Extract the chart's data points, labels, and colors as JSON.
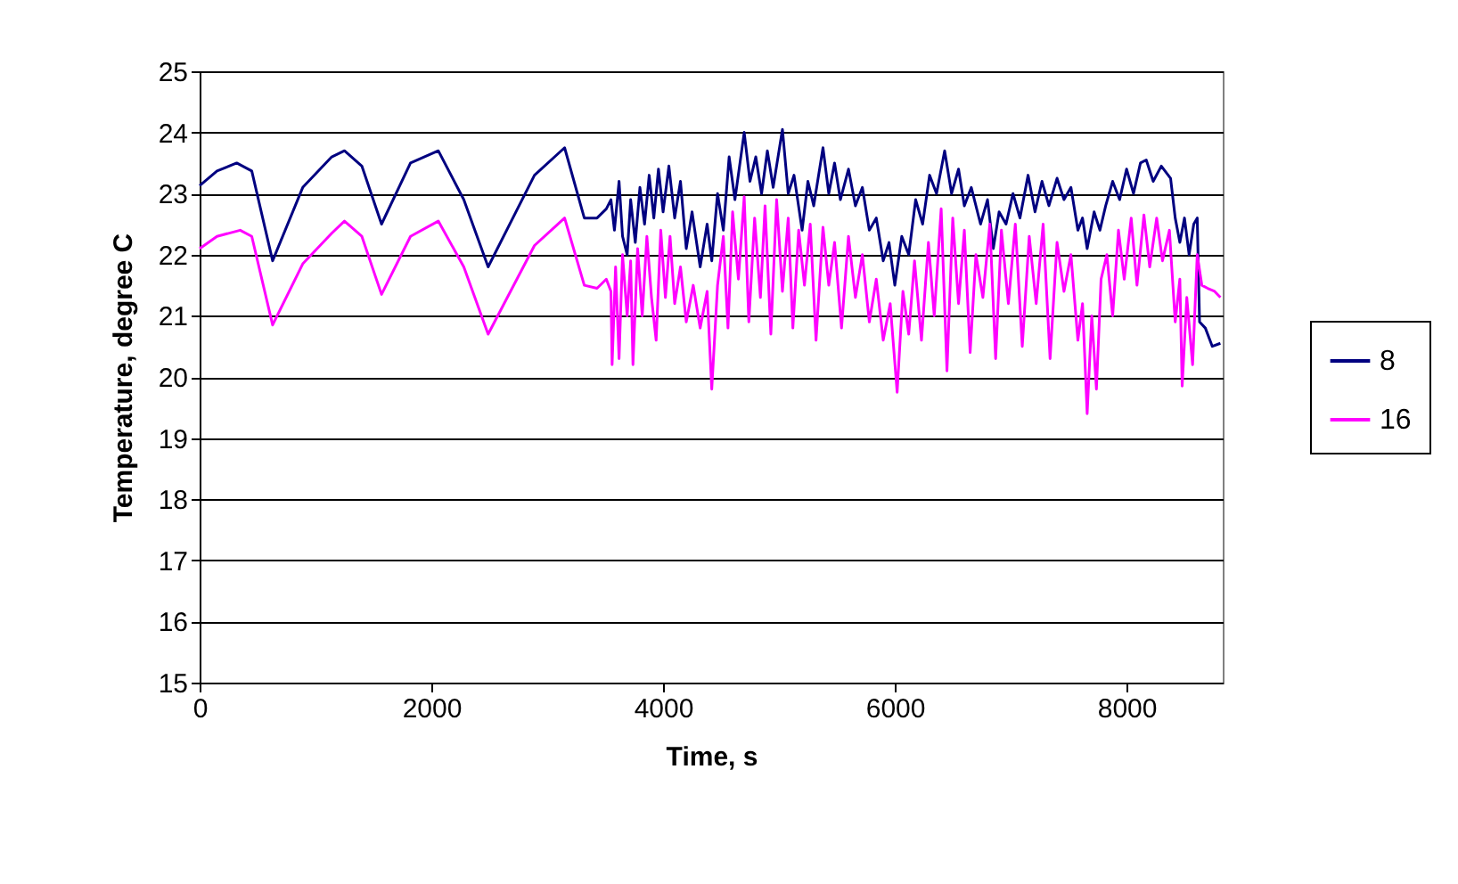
{
  "chart_data": {
    "type": "line",
    "xlabel": "Time, s",
    "ylabel": "Temperature, degree C",
    "xlim": [
      0,
      8830
    ],
    "xticks": [
      0,
      2000,
      4000,
      6000,
      8000
    ],
    "ylim": [
      15,
      25
    ],
    "yticks": [
      15,
      16,
      17,
      18,
      19,
      20,
      21,
      22,
      23,
      24,
      25
    ],
    "grid": "y",
    "legend": "right",
    "marker": "none",
    "line_style": "solid",
    "series": [
      {
        "name": "8",
        "color": "#000080",
        "x": [
          0,
          150,
          320,
          450,
          630,
          890,
          1140,
          1250,
          1400,
          1570,
          1820,
          2060,
          2280,
          2490,
          2890,
          3150,
          3320,
          3430,
          3510,
          3550,
          3580,
          3620,
          3650,
          3690,
          3720,
          3760,
          3800,
          3840,
          3880,
          3920,
          3960,
          4000,
          4050,
          4100,
          4150,
          4200,
          4250,
          4320,
          4380,
          4420,
          4470,
          4520,
          4570,
          4620,
          4700,
          4750,
          4800,
          4850,
          4900,
          4950,
          5030,
          5080,
          5130,
          5200,
          5250,
          5300,
          5380,
          5430,
          5480,
          5530,
          5600,
          5660,
          5720,
          5780,
          5840,
          5900,
          5950,
          6000,
          6060,
          6120,
          6180,
          6240,
          6300,
          6360,
          6430,
          6490,
          6550,
          6600,
          6660,
          6740,
          6800,
          6850,
          6900,
          6960,
          7020,
          7080,
          7150,
          7210,
          7270,
          7330,
          7400,
          7460,
          7520,
          7580,
          7620,
          7660,
          7720,
          7770,
          7820,
          7880,
          7940,
          8000,
          8060,
          8120,
          8170,
          8230,
          8300,
          8380,
          8420,
          8460,
          8500,
          8540,
          8580,
          8610,
          8630,
          8680,
          8740,
          8810
        ],
        "values": [
          23.13,
          23.37,
          23.5,
          23.37,
          21.9,
          23.1,
          23.6,
          23.7,
          23.45,
          22.5,
          23.5,
          23.7,
          22.9,
          21.8,
          23.3,
          23.75,
          22.6,
          22.6,
          22.75,
          22.9,
          22.4,
          23.2,
          22.3,
          22.0,
          22.9,
          22.2,
          23.1,
          22.5,
          23.3,
          22.6,
          23.4,
          22.7,
          23.45,
          22.6,
          23.2,
          22.1,
          22.7,
          21.8,
          22.5,
          21.9,
          23.0,
          22.4,
          23.6,
          22.9,
          24.0,
          23.2,
          23.6,
          23.0,
          23.7,
          23.1,
          24.05,
          23.0,
          23.3,
          22.4,
          23.2,
          22.8,
          23.75,
          23.0,
          23.5,
          22.9,
          23.4,
          22.8,
          23.1,
          22.4,
          22.6,
          21.9,
          22.2,
          21.5,
          22.3,
          22.0,
          22.9,
          22.5,
          23.3,
          23.0,
          23.7,
          23.0,
          23.4,
          22.8,
          23.1,
          22.5,
          22.9,
          22.1,
          22.7,
          22.5,
          23.0,
          22.6,
          23.3,
          22.7,
          23.2,
          22.8,
          23.25,
          22.9,
          23.1,
          22.4,
          22.6,
          22.1,
          22.7,
          22.4,
          22.8,
          23.2,
          22.9,
          23.4,
          23.0,
          23.5,
          23.55,
          23.2,
          23.45,
          23.25,
          22.6,
          22.2,
          22.6,
          22.0,
          22.5,
          22.6,
          20.9,
          20.8,
          20.5,
          20.55
        ]
      },
      {
        "name": "16",
        "color": "#ff00ff",
        "x": [
          0,
          150,
          350,
          450,
          630,
          890,
          1140,
          1250,
          1400,
          1570,
          1820,
          2060,
          2280,
          2490,
          2890,
          3150,
          3320,
          3430,
          3510,
          3550,
          3560,
          3590,
          3620,
          3650,
          3690,
          3720,
          3740,
          3780,
          3820,
          3860,
          3900,
          3940,
          3980,
          4020,
          4060,
          4100,
          4150,
          4200,
          4260,
          4320,
          4380,
          4420,
          4470,
          4520,
          4560,
          4600,
          4650,
          4700,
          4740,
          4790,
          4840,
          4880,
          4930,
          4980,
          5030,
          5080,
          5120,
          5170,
          5220,
          5270,
          5320,
          5380,
          5430,
          5480,
          5540,
          5600,
          5660,
          5720,
          5780,
          5840,
          5900,
          5960,
          6020,
          6070,
          6120,
          6170,
          6230,
          6290,
          6340,
          6400,
          6450,
          6500,
          6550,
          6600,
          6650,
          6700,
          6760,
          6820,
          6870,
          6920,
          6980,
          7040,
          7100,
          7160,
          7220,
          7280,
          7340,
          7400,
          7460,
          7520,
          7580,
          7620,
          7660,
          7700,
          7740,
          7780,
          7830,
          7880,
          7930,
          7980,
          8040,
          8090,
          8150,
          8200,
          8260,
          8310,
          8370,
          8420,
          8460,
          8480,
          8520,
          8570,
          8610,
          8650,
          8700,
          8760,
          8810
        ],
        "values": [
          22.1,
          22.3,
          22.4,
          22.3,
          20.85,
          21.85,
          22.35,
          22.55,
          22.3,
          21.35,
          22.3,
          22.55,
          21.8,
          20.7,
          22.15,
          22.6,
          21.5,
          21.45,
          21.6,
          21.4,
          20.2,
          21.8,
          20.3,
          22.0,
          21.0,
          21.9,
          20.2,
          22.1,
          21.0,
          22.3,
          21.3,
          20.6,
          22.4,
          21.3,
          22.3,
          21.2,
          21.8,
          20.9,
          21.5,
          20.8,
          21.4,
          19.8,
          21.5,
          22.3,
          20.8,
          22.7,
          21.6,
          22.95,
          20.9,
          22.6,
          21.3,
          22.8,
          20.7,
          22.9,
          21.4,
          22.6,
          20.8,
          22.4,
          21.5,
          22.5,
          20.6,
          22.45,
          21.5,
          22.2,
          20.8,
          22.3,
          21.3,
          22.0,
          20.9,
          21.6,
          20.6,
          21.2,
          19.75,
          21.4,
          20.7,
          21.9,
          20.6,
          22.2,
          21.0,
          22.75,
          20.1,
          22.6,
          21.2,
          22.4,
          20.4,
          22.0,
          21.3,
          22.5,
          20.3,
          22.4,
          21.2,
          22.5,
          20.5,
          22.3,
          21.2,
          22.5,
          20.3,
          22.2,
          21.4,
          22.0,
          20.6,
          21.2,
          19.4,
          21.0,
          19.8,
          21.6,
          22.0,
          21.0,
          22.4,
          21.6,
          22.6,
          21.5,
          22.65,
          21.8,
          22.6,
          21.9,
          22.4,
          20.9,
          21.6,
          19.85,
          21.3,
          20.2,
          22.0,
          21.5,
          21.45,
          21.4,
          21.3
        ]
      }
    ]
  }
}
